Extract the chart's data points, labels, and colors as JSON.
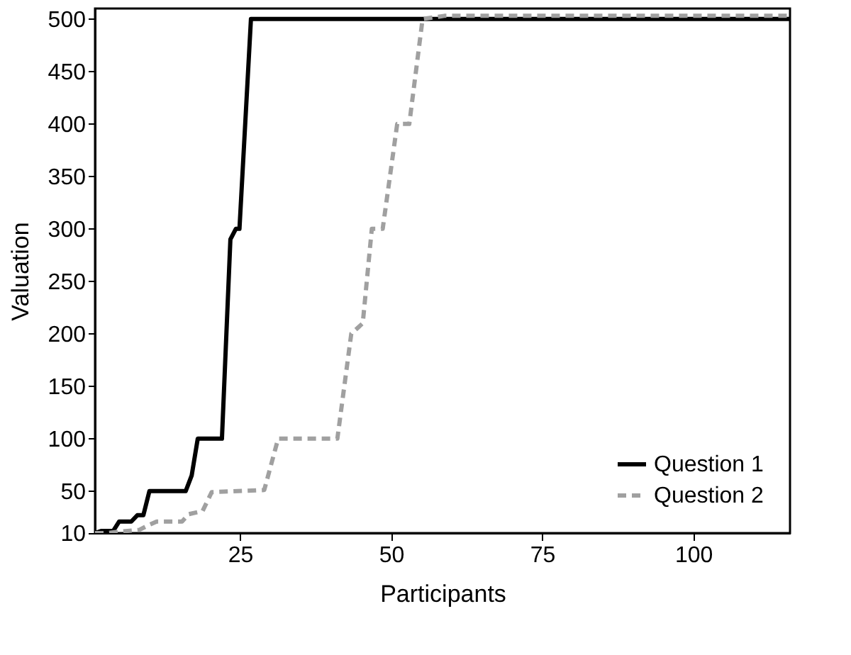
{
  "chart_data": {
    "type": "line",
    "xlabel": "Participants",
    "ylabel": "Valuation",
    "xlim": [
      1,
      116
    ],
    "xticks": [
      25,
      50,
      75,
      100
    ],
    "ylim": [
      10,
      510
    ],
    "yticks": [
      10,
      50,
      100,
      150,
      200,
      250,
      300,
      350,
      400,
      450,
      500
    ],
    "grid": false,
    "legend": "bottom right",
    "series": [
      {
        "name": "Question 1",
        "color": "#000000",
        "line_style": "solid",
        "x": [
          1,
          2,
          4,
          5,
          7,
          8,
          9,
          10,
          16,
          17,
          18,
          22,
          23.4,
          24.3,
          24.9,
          26.8,
          116
        ],
        "values": [
          10,
          12,
          12,
          21,
          21,
          27,
          27,
          50,
          50,
          65,
          100,
          100,
          290,
          300,
          300,
          500,
          500
        ]
      },
      {
        "name": "Question 2",
        "color": "#a0a0a0",
        "line_style": "dashed",
        "x": [
          1,
          3,
          4.5,
          8.3,
          10,
          11.2,
          15.4,
          16.5,
          18.8,
          20.3,
          29,
          31.3,
          41.1,
          43.4,
          45.3,
          46.8,
          48.6,
          51,
          53,
          55.2,
          58.8,
          116
        ],
        "values": [
          10,
          10,
          11,
          13,
          18,
          21,
          21,
          28,
          31,
          49,
          51,
          100,
          100,
          200,
          210,
          300,
          300,
          400,
          400,
          500,
          503,
          503
        ]
      }
    ]
  }
}
